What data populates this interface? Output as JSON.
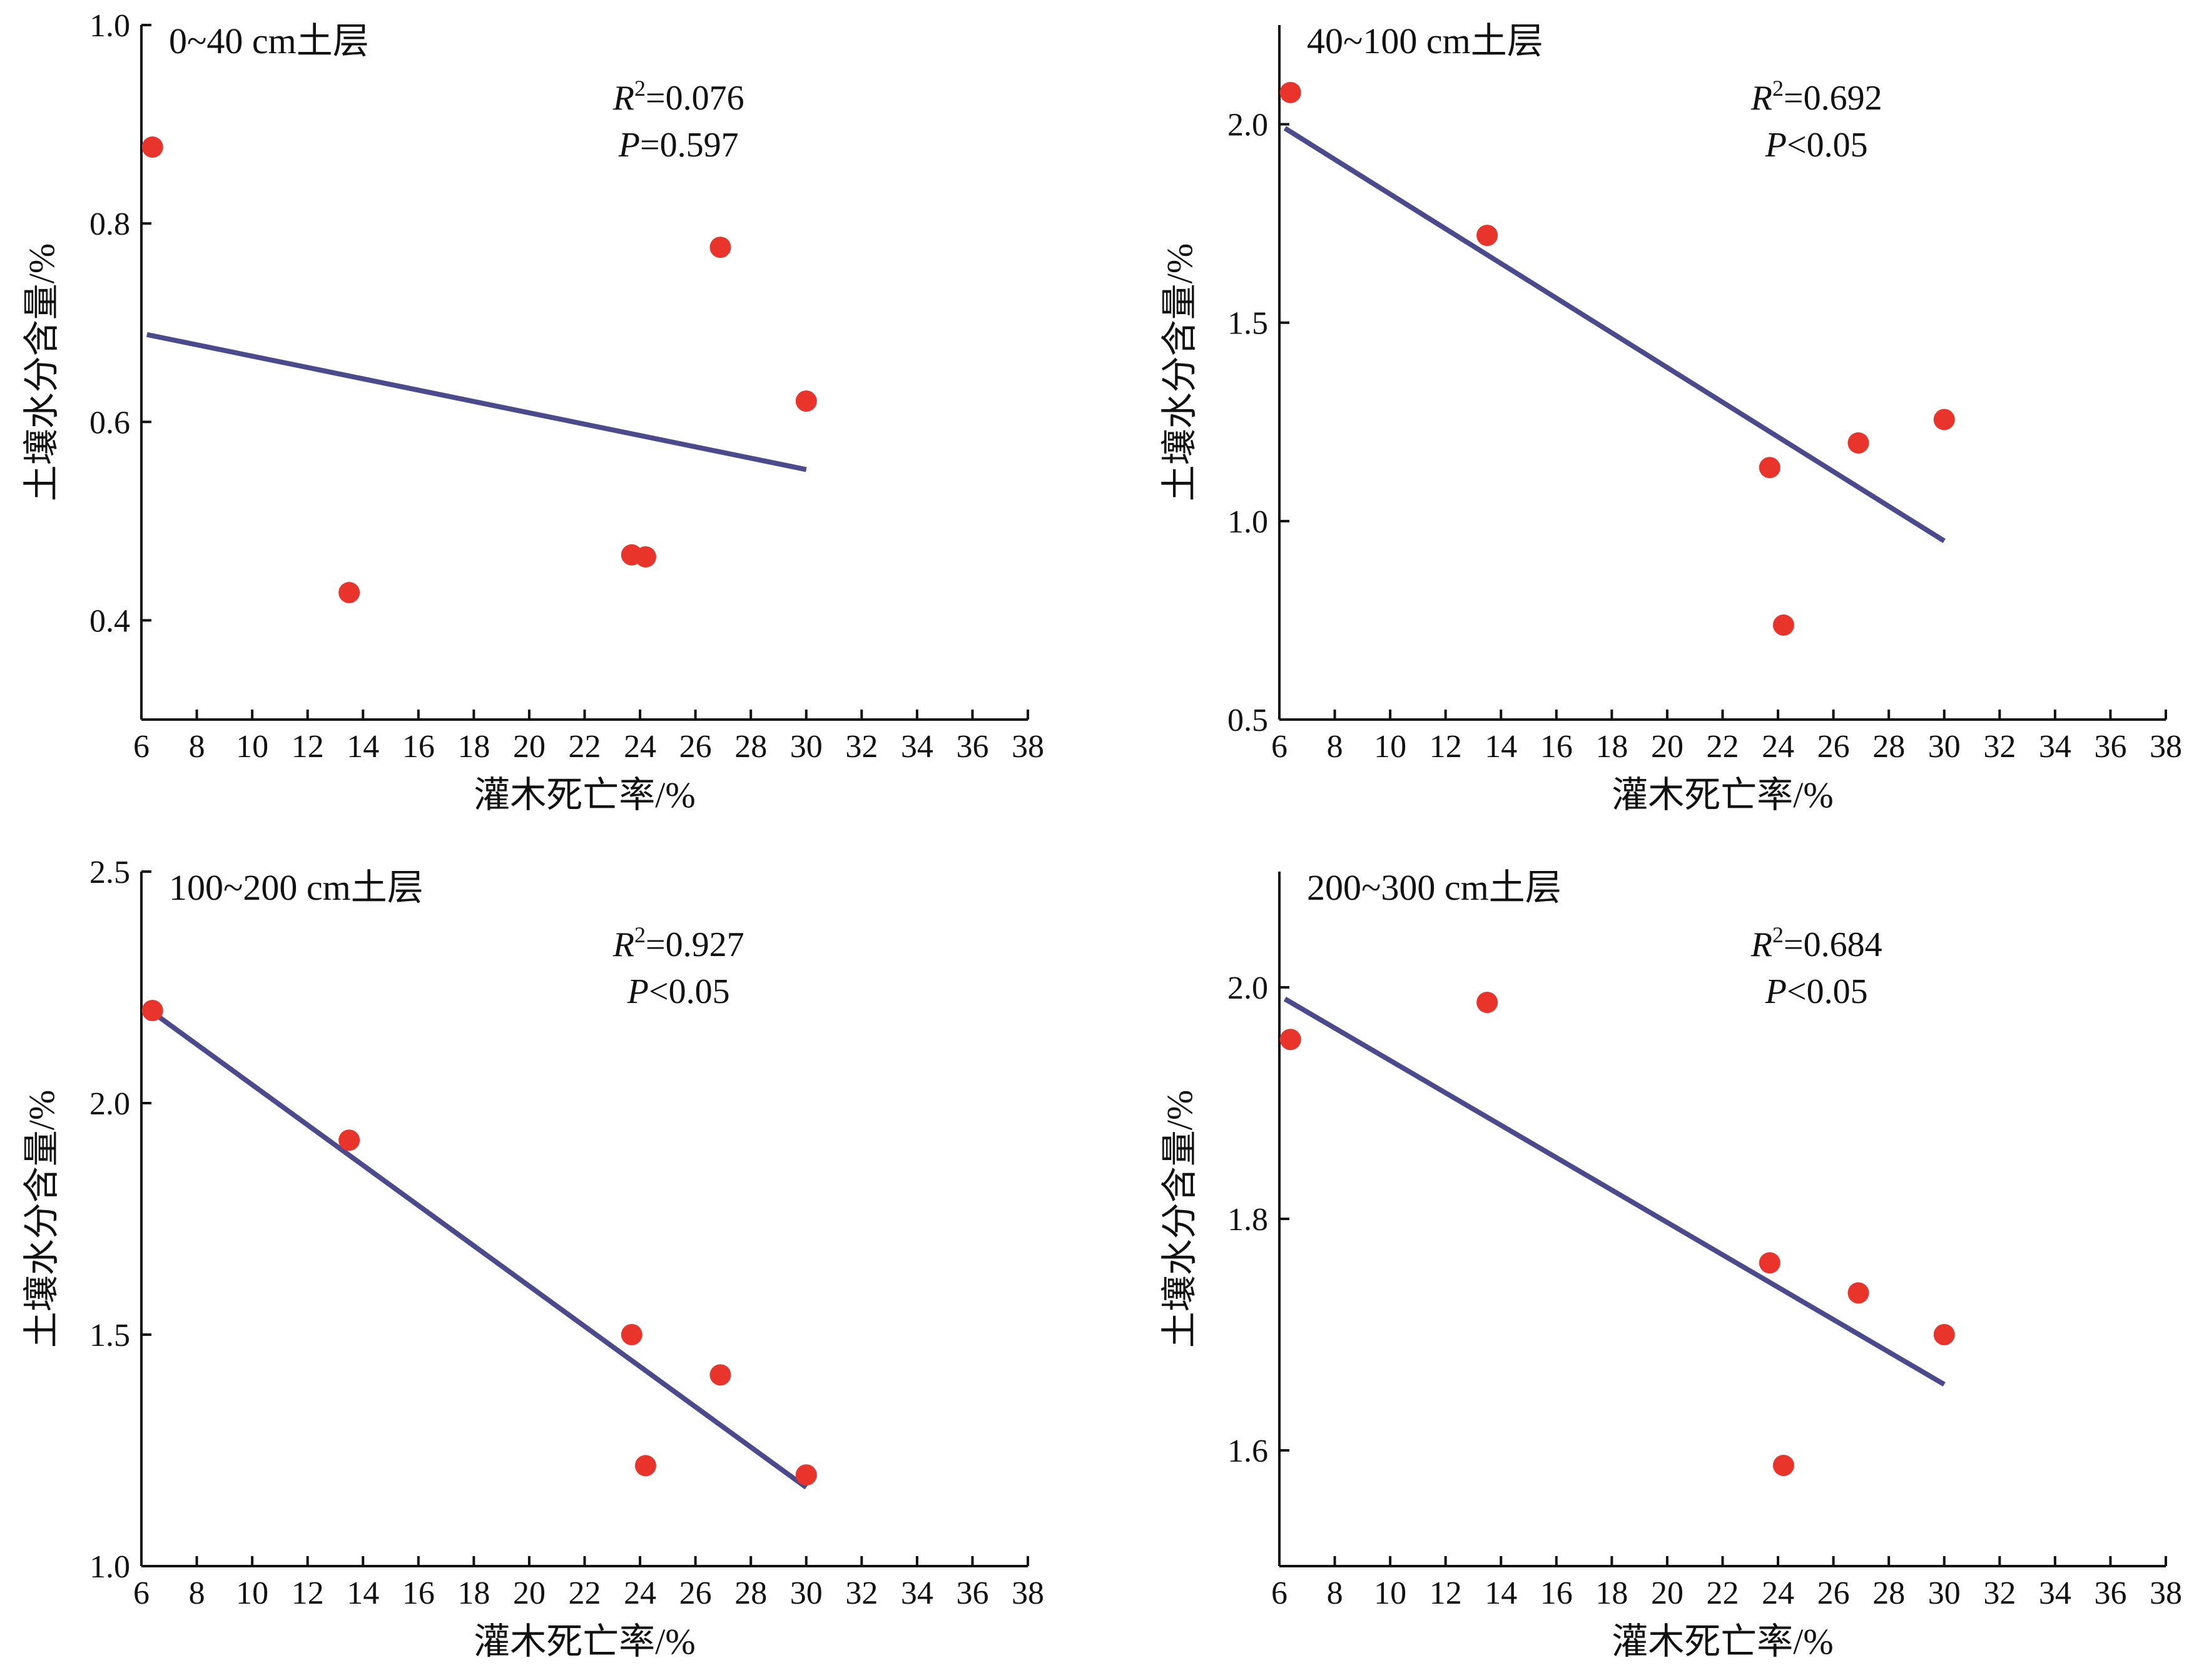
{
  "colors": {
    "points": "#e8342a",
    "fit_line": "#4b4a8c",
    "axes": "#111111"
  },
  "chart_data": [
    {
      "type": "scatter",
      "title": "0~40 cm土层",
      "xlabel": "灌木死亡率/%",
      "ylabel": "土壤水分含量/%",
      "xlim": [
        6,
        38
      ],
      "ylim": [
        0.3,
        1.0
      ],
      "xticks": [
        "6",
        "8",
        "10",
        "12",
        "14",
        "16",
        "18",
        "20",
        "22",
        "24",
        "26",
        "28",
        "30",
        "32",
        "34",
        "36",
        "38"
      ],
      "yticks": [
        "0.4",
        "0.6",
        "0.8",
        "1.0"
      ],
      "y_tick_values": [
        0.4,
        0.6,
        0.8,
        1.0
      ],
      "points": [
        {
          "x": 6.4,
          "y": 0.877
        },
        {
          "x": 13.5,
          "y": 0.428
        },
        {
          "x": 23.7,
          "y": 0.466
        },
        {
          "x": 24.2,
          "y": 0.464
        },
        {
          "x": 26.9,
          "y": 0.776
        },
        {
          "x": 30.0,
          "y": 0.621
        }
      ],
      "fit_line": [
        {
          "x": 6.2,
          "y": 0.688
        },
        {
          "x": 30.0,
          "y": 0.552
        }
      ],
      "stats": {
        "r2_var": "R",
        "r2_sup": "2",
        "r2_value": "=0.076",
        "p_var": "P",
        "p_value": "=0.597"
      }
    },
    {
      "type": "scatter",
      "title": "40~100 cm土层",
      "xlabel": "灌木死亡率/%",
      "ylabel": "土壤水分含量/%",
      "xlim": [
        6,
        38
      ],
      "ylim": [
        0.5,
        2.25
      ],
      "xticks": [
        "6",
        "8",
        "10",
        "12",
        "14",
        "16",
        "18",
        "20",
        "22",
        "24",
        "26",
        "28",
        "30",
        "32",
        "34",
        "36",
        "38"
      ],
      "yticks": [
        "0.5",
        "1.0",
        "1.5",
        "2.0"
      ],
      "y_tick_values": [
        0.5,
        1.0,
        1.5,
        2.0
      ],
      "points": [
        {
          "x": 6.4,
          "y": 2.08
        },
        {
          "x": 13.5,
          "y": 1.72
        },
        {
          "x": 23.7,
          "y": 1.135
        },
        {
          "x": 24.2,
          "y": 0.738
        },
        {
          "x": 26.9,
          "y": 1.197
        },
        {
          "x": 30.0,
          "y": 1.256
        }
      ],
      "fit_line": [
        {
          "x": 6.2,
          "y": 1.99
        },
        {
          "x": 30.0,
          "y": 0.95
        }
      ],
      "stats": {
        "r2_var": "R",
        "r2_sup": "2",
        "r2_value": "=0.692",
        "p_var": "P",
        "p_value": "<0.05"
      }
    },
    {
      "type": "scatter",
      "title": "100~200 cm土层",
      "xlabel": "灌木死亡率/%",
      "ylabel": "土壤水分含量/%",
      "xlim": [
        6,
        38
      ],
      "ylim": [
        1.0,
        2.5
      ],
      "xticks": [
        "6",
        "8",
        "10",
        "12",
        "14",
        "16",
        "18",
        "20",
        "22",
        "24",
        "26",
        "28",
        "30",
        "32",
        "34",
        "36",
        "38"
      ],
      "yticks": [
        "1.0",
        "1.5",
        "2.0",
        "2.5"
      ],
      "y_tick_values": [
        1.0,
        1.5,
        2.0,
        2.5
      ],
      "points": [
        {
          "x": 6.4,
          "y": 2.2
        },
        {
          "x": 13.5,
          "y": 1.92
        },
        {
          "x": 23.7,
          "y": 1.5
        },
        {
          "x": 24.2,
          "y": 1.217
        },
        {
          "x": 26.9,
          "y": 1.413
        },
        {
          "x": 30.0,
          "y": 1.197
        }
      ],
      "fit_line": [
        {
          "x": 6.2,
          "y": 2.205
        },
        {
          "x": 30.0,
          "y": 1.17
        }
      ],
      "stats": {
        "r2_var": "R",
        "r2_sup": "2",
        "r2_value": "=0.927",
        "p_var": "P",
        "p_value": "<0.05"
      }
    },
    {
      "type": "scatter",
      "title": "200~300 cm土层",
      "xlabel": "灌木死亡率/%",
      "ylabel": "土壤水分含量/%",
      "xlim": [
        6,
        38
      ],
      "ylim": [
        1.5,
        2.1
      ],
      "xticks": [
        "6",
        "8",
        "10",
        "12",
        "14",
        "16",
        "18",
        "20",
        "22",
        "24",
        "26",
        "28",
        "30",
        "32",
        "34",
        "36",
        "38"
      ],
      "yticks": [
        "1.6",
        "1.8",
        "2.0"
      ],
      "y_tick_values": [
        1.6,
        1.8,
        2.0
      ],
      "points": [
        {
          "x": 6.4,
          "y": 1.955
        },
        {
          "x": 13.5,
          "y": 1.987
        },
        {
          "x": 23.7,
          "y": 1.762
        },
        {
          "x": 24.2,
          "y": 1.587
        },
        {
          "x": 26.9,
          "y": 1.736
        },
        {
          "x": 30.0,
          "y": 1.7
        }
      ],
      "fit_line": [
        {
          "x": 6.2,
          "y": 1.99
        },
        {
          "x": 30.0,
          "y": 1.657
        }
      ],
      "stats": {
        "r2_var": "R",
        "r2_sup": "2",
        "r2_value": "=0.684",
        "p_var": "P",
        "p_value": "<0.05"
      }
    }
  ]
}
